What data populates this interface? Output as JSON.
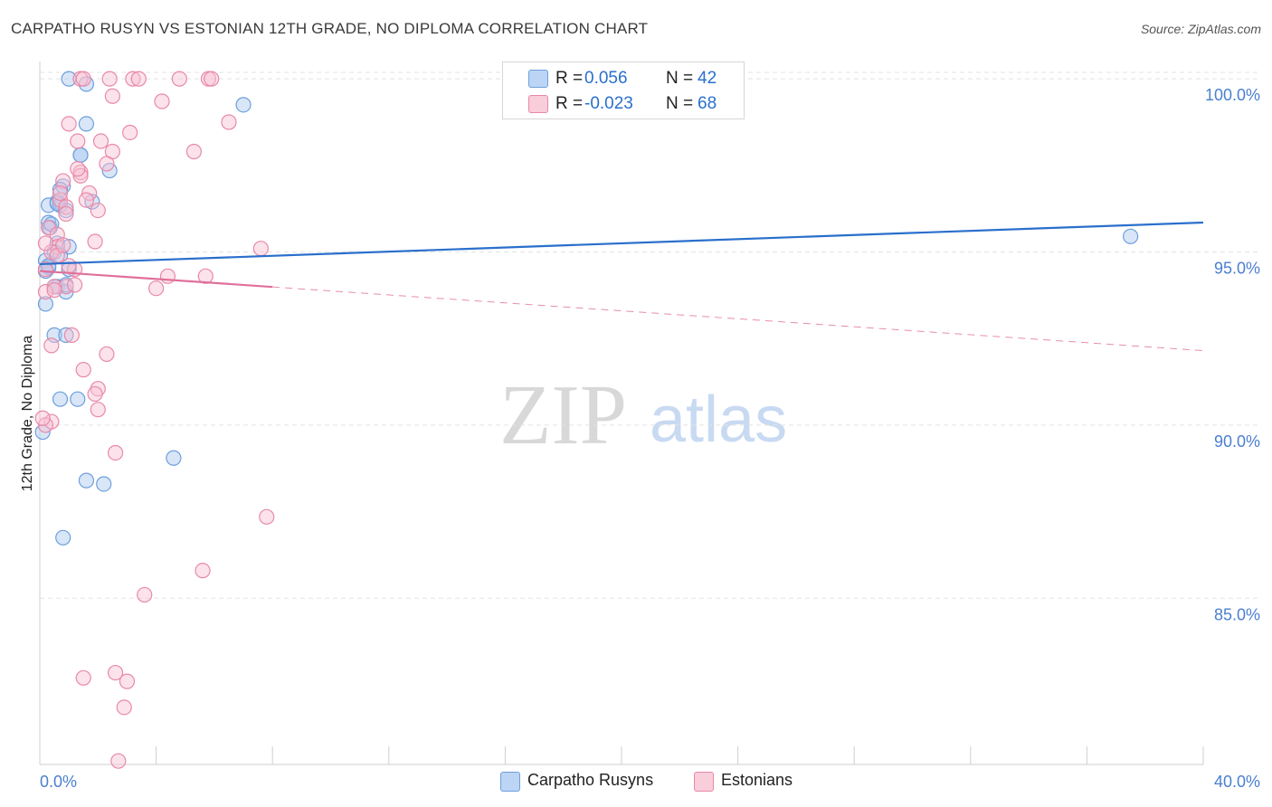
{
  "title": "CARPATHO RUSYN VS ESTONIAN 12TH GRADE, NO DIPLOMA CORRELATION CHART",
  "source": "Source: ZipAtlas.com",
  "watermark": {
    "zip": "ZIP",
    "atlas": "atlas"
  },
  "legend_top": [
    {
      "r_label": "R =",
      "r_value": "0.056",
      "n_label": "N =",
      "n_value": "42"
    },
    {
      "r_label": "R =",
      "r_value": "-0.023",
      "n_label": "N =",
      "n_value": "68"
    }
  ],
  "legend_bottom": [
    {
      "label": "Carpatho Rusyns"
    },
    {
      "label": "Estonians"
    }
  ],
  "colors": {
    "blue_fill": "#a8c8f0",
    "blue_stroke": "#6e9fdc",
    "blue_line": "#2a6fcc",
    "pink_fill": "#f8c0d2",
    "pink_stroke": "#e889a9",
    "pink_line": "#e0709a",
    "axis_text": "#4a7fd0",
    "grid": "#e3e3e3"
  },
  "chart_data": {
    "type": "scatter",
    "title": "CARPATHO RUSYN VS ESTONIAN 12TH GRADE, NO DIPLOMA CORRELATION CHART",
    "xlabel": "",
    "ylabel": "12th Grade, No Diploma",
    "xlim": [
      0,
      40
    ],
    "ylim": [
      80.2,
      100.5
    ],
    "x_tick_labels": [
      {
        "value": 0,
        "label": "0.0%"
      },
      {
        "value": 40,
        "label": "40.0%"
      }
    ],
    "x_minor_ticks": [
      4,
      8,
      12,
      16,
      20,
      24,
      28,
      32,
      36,
      40
    ],
    "y_ticks": [
      {
        "value": 100,
        "label": "100.0%"
      },
      {
        "value": 95,
        "label": "95.0%"
      },
      {
        "value": 90,
        "label": "90.0%"
      },
      {
        "value": 85,
        "label": "85.0%"
      }
    ],
    "series": [
      {
        "name": "Carpatho Rusyns",
        "color": "blue",
        "R": 0.056,
        "N": 42,
        "trend": {
          "x0": 0,
          "y0": 94.65,
          "x1": 40,
          "y1": 95.85,
          "solid_to": 40
        },
        "points": [
          [
            1.0,
            100.0
          ],
          [
            1.6,
            99.85
          ],
          [
            7.0,
            99.25
          ],
          [
            1.6,
            98.7
          ],
          [
            1.4,
            97.8
          ],
          [
            1.4,
            97.8
          ],
          [
            2.4,
            97.35
          ],
          [
            0.8,
            96.9
          ],
          [
            0.7,
            96.8
          ],
          [
            0.6,
            96.45
          ],
          [
            1.8,
            96.45
          ],
          [
            0.3,
            96.35
          ],
          [
            0.7,
            96.35
          ],
          [
            0.9,
            96.2
          ],
          [
            0.3,
            95.85
          ],
          [
            0.35,
            95.7
          ],
          [
            0.6,
            95.25
          ],
          [
            1.0,
            95.15
          ],
          [
            0.5,
            95.0
          ],
          [
            0.7,
            94.9
          ],
          [
            0.2,
            94.75
          ],
          [
            0.3,
            94.55
          ],
          [
            0.2,
            94.45
          ],
          [
            0.6,
            94.0
          ],
          [
            0.5,
            94.0
          ],
          [
            0.9,
            93.85
          ],
          [
            0.2,
            93.5
          ],
          [
            0.5,
            92.6
          ],
          [
            0.9,
            92.6
          ],
          [
            0.7,
            90.75
          ],
          [
            1.3,
            90.75
          ],
          [
            0.1,
            89.8
          ],
          [
            4.6,
            89.05
          ],
          [
            1.6,
            88.4
          ],
          [
            2.2,
            88.3
          ],
          [
            0.8,
            86.75
          ],
          [
            37.5,
            95.45
          ],
          [
            0.4,
            95.8
          ],
          [
            0.9,
            94.05
          ],
          [
            0.3,
            94.6
          ],
          [
            0.6,
            96.4
          ],
          [
            1.0,
            94.5
          ]
        ]
      },
      {
        "name": "Estonians",
        "color": "pink",
        "R": -0.023,
        "N": 68,
        "trend": {
          "x0": 0,
          "y0": 94.45,
          "x1": 40,
          "y1": 92.15,
          "solid_to": 8.0
        },
        "points": [
          [
            1.4,
            100.0
          ],
          [
            1.5,
            100.0
          ],
          [
            2.4,
            100.0
          ],
          [
            3.2,
            100.0
          ],
          [
            3.4,
            100.0
          ],
          [
            4.8,
            100.0
          ],
          [
            5.8,
            100.0
          ],
          [
            5.9,
            100.0
          ],
          [
            2.5,
            99.5
          ],
          [
            4.2,
            99.35
          ],
          [
            6.5,
            98.75
          ],
          [
            1.0,
            98.7
          ],
          [
            3.1,
            98.45
          ],
          [
            1.3,
            98.2
          ],
          [
            2.1,
            98.2
          ],
          [
            2.5,
            97.9
          ],
          [
            5.3,
            97.9
          ],
          [
            2.3,
            97.55
          ],
          [
            1.4,
            97.3
          ],
          [
            1.4,
            97.2
          ],
          [
            0.8,
            97.05
          ],
          [
            1.7,
            96.7
          ],
          [
            0.7,
            96.5
          ],
          [
            1.6,
            96.5
          ],
          [
            0.9,
            96.3
          ],
          [
            0.9,
            96.1
          ],
          [
            0.3,
            95.7
          ],
          [
            0.6,
            95.5
          ],
          [
            1.9,
            95.3
          ],
          [
            0.6,
            95.15
          ],
          [
            7.6,
            95.1
          ],
          [
            0.4,
            95.0
          ],
          [
            0.6,
            94.9
          ],
          [
            0.2,
            94.5
          ],
          [
            1.2,
            94.5
          ],
          [
            4.4,
            94.3
          ],
          [
            5.7,
            94.3
          ],
          [
            0.9,
            94.0
          ],
          [
            0.5,
            94.0
          ],
          [
            4.0,
            93.95
          ],
          [
            0.2,
            93.85
          ],
          [
            1.1,
            92.6
          ],
          [
            0.4,
            92.3
          ],
          [
            2.3,
            92.05
          ],
          [
            1.5,
            91.6
          ],
          [
            2.0,
            91.05
          ],
          [
            1.9,
            90.9
          ],
          [
            2.0,
            90.45
          ],
          [
            0.4,
            90.1
          ],
          [
            0.2,
            90.0
          ],
          [
            2.6,
            89.2
          ],
          [
            7.8,
            87.35
          ],
          [
            5.6,
            85.8
          ],
          [
            3.6,
            85.1
          ],
          [
            2.6,
            82.85
          ],
          [
            1.5,
            82.7
          ],
          [
            3.0,
            82.6
          ],
          [
            2.9,
            81.85
          ],
          [
            2.7,
            80.3
          ],
          [
            0.1,
            90.2
          ],
          [
            0.2,
            95.25
          ],
          [
            1.0,
            94.6
          ],
          [
            0.8,
            95.2
          ],
          [
            1.3,
            97.4
          ],
          [
            2.0,
            96.2
          ],
          [
            0.5,
            93.9
          ],
          [
            1.2,
            94.05
          ],
          [
            0.7,
            96.7
          ]
        ]
      }
    ]
  }
}
